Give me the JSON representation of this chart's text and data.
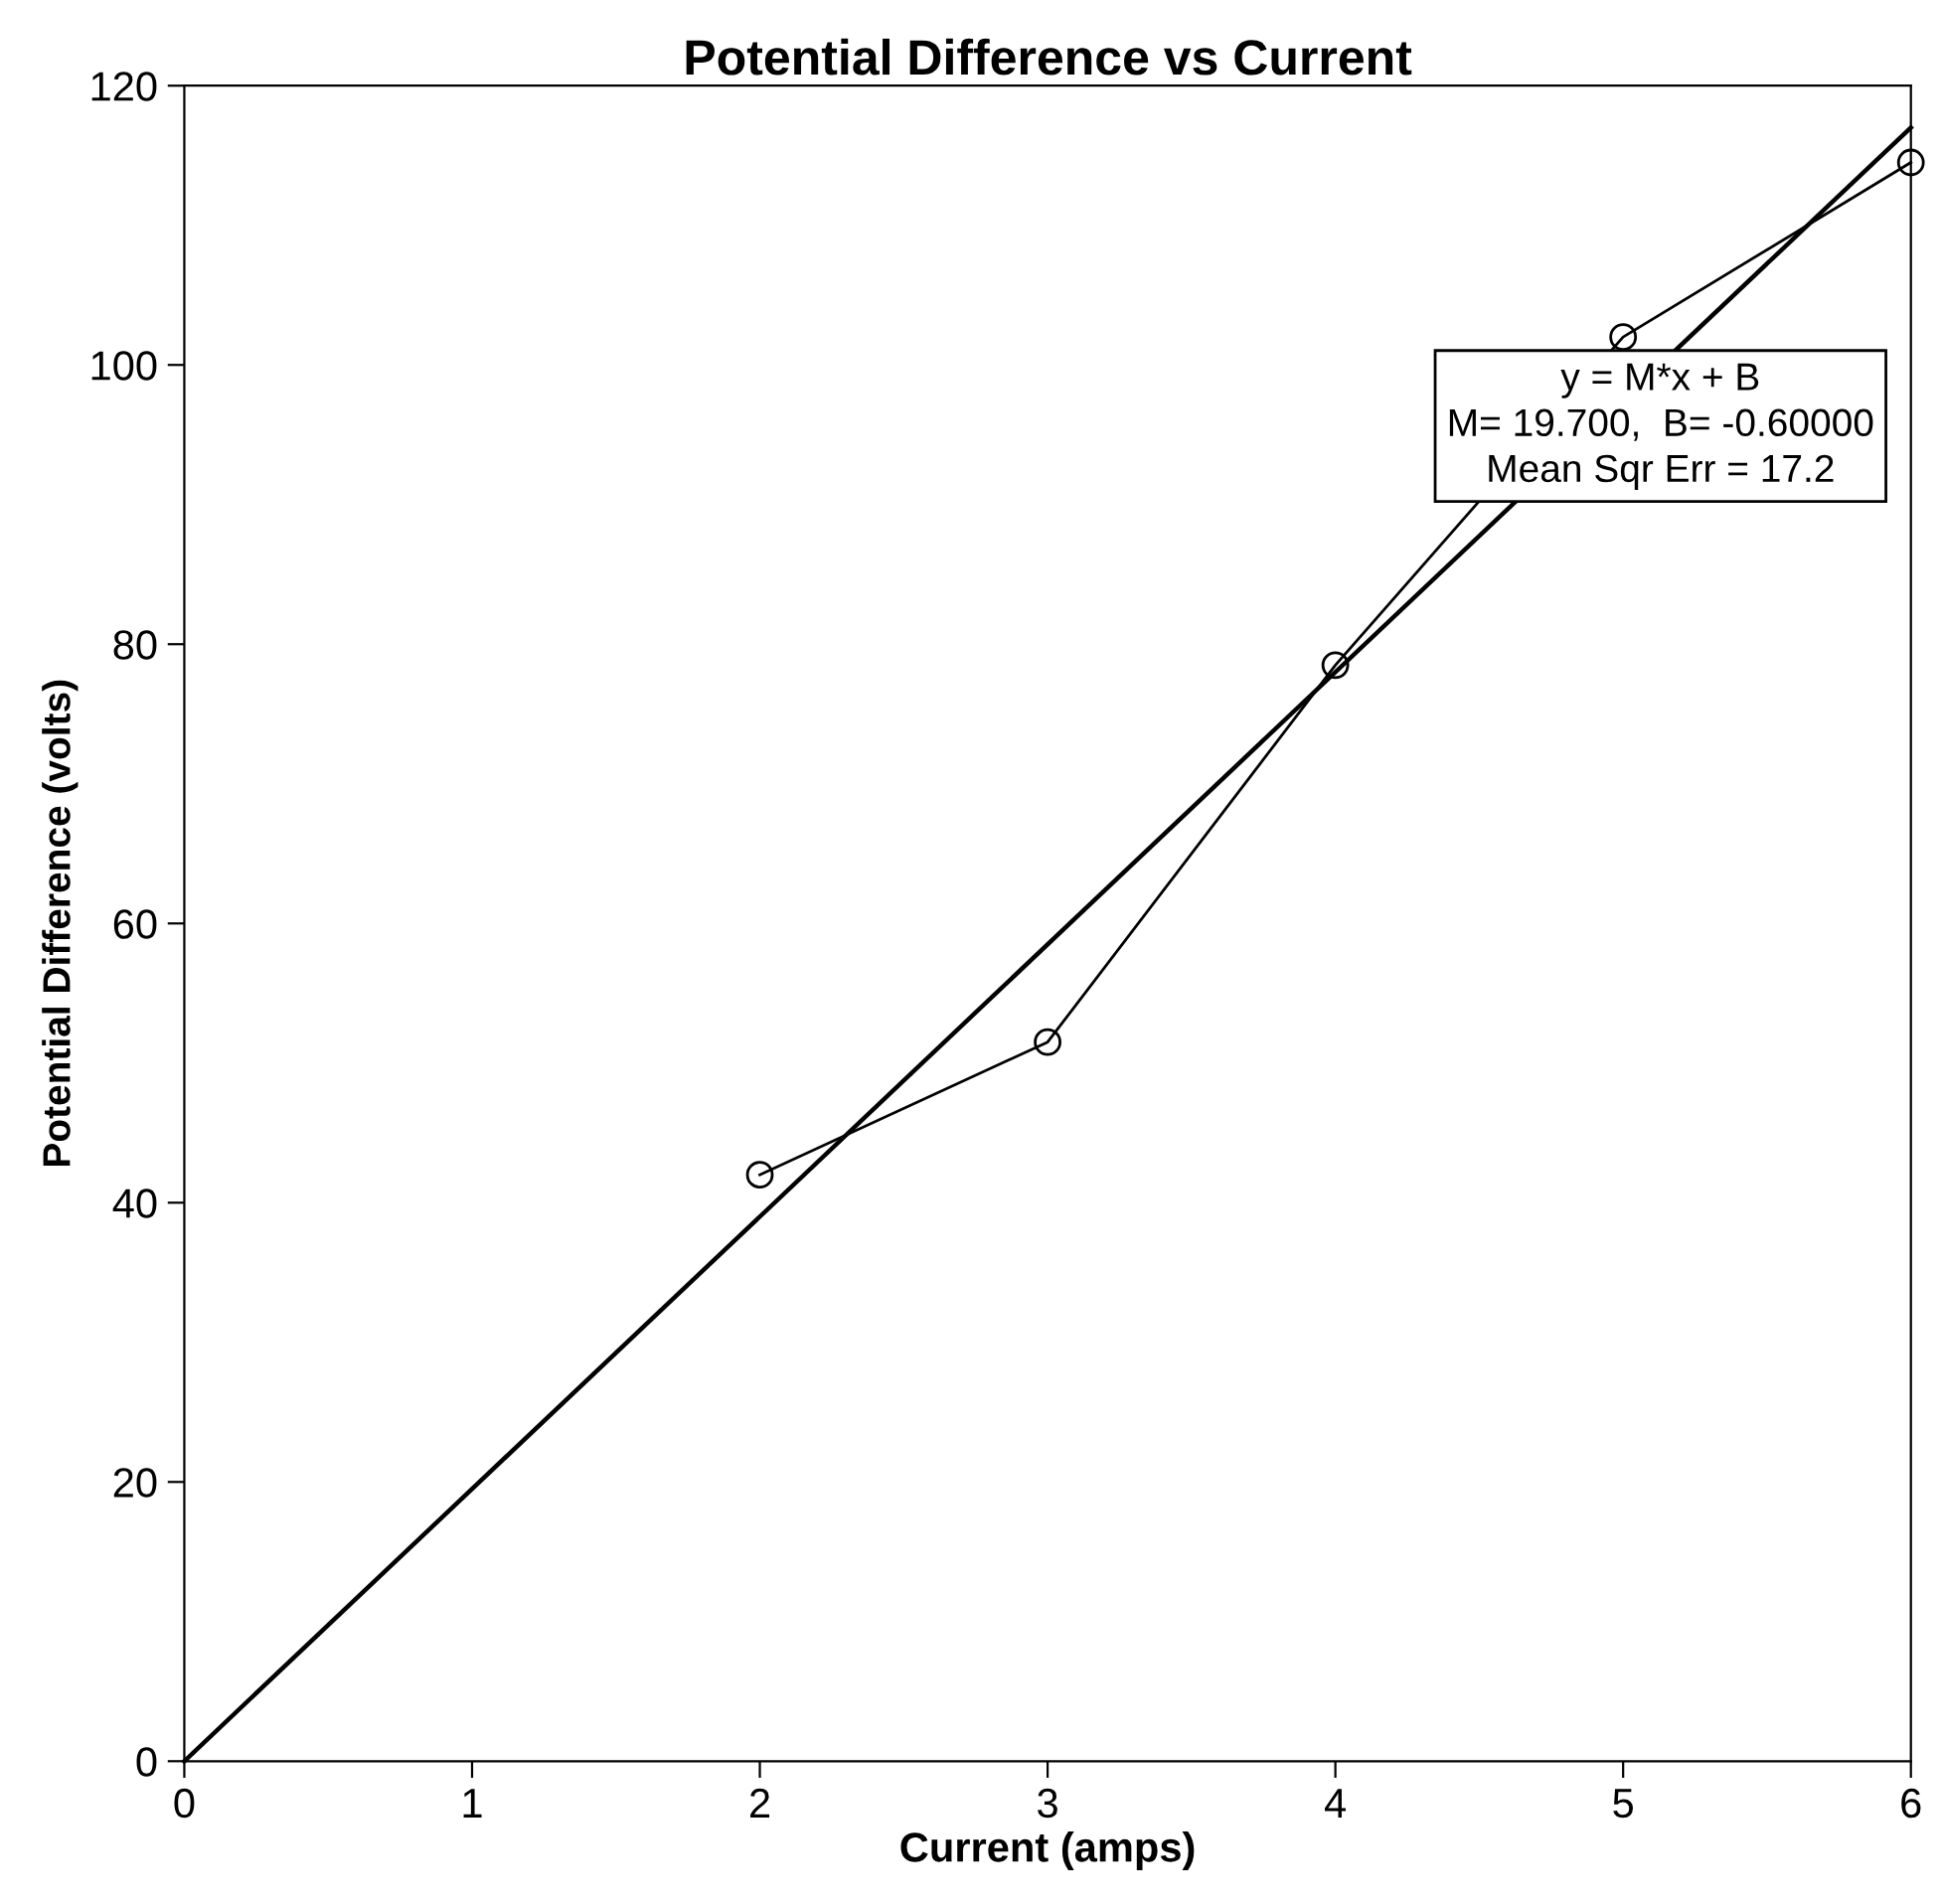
{
  "chart_data": {
    "type": "line",
    "title": "Potential Difference vs Current",
    "xlabel": "Current (amps)",
    "ylabel": "Potential Difference (volts)",
    "series": [
      {
        "color": "#000000",
        "x": [
          2,
          3,
          4,
          5,
          6
        ],
        "values": [
          42,
          51.5,
          78.5,
          102,
          114.5
        ],
        "marker": "circle"
      },
      {
        "color": "#000000",
        "x": [
          0,
          6
        ],
        "values": [
          0,
          117
        ],
        "marker": "none"
      }
    ],
    "xlim": [
      0,
      6
    ],
    "ylim": [
      0,
      120
    ],
    "xticks": [
      0,
      1,
      2,
      3,
      4,
      5,
      6
    ],
    "yticks": [
      0,
      20,
      40,
      60,
      80,
      100,
      120
    ],
    "grid": false,
    "legend": false,
    "line_style": "solid",
    "annotations": [
      "y = M*x + B",
      "M= 19.700,  B= -0.60000",
      "Mean Sqr Err = 17.2"
    ]
  }
}
